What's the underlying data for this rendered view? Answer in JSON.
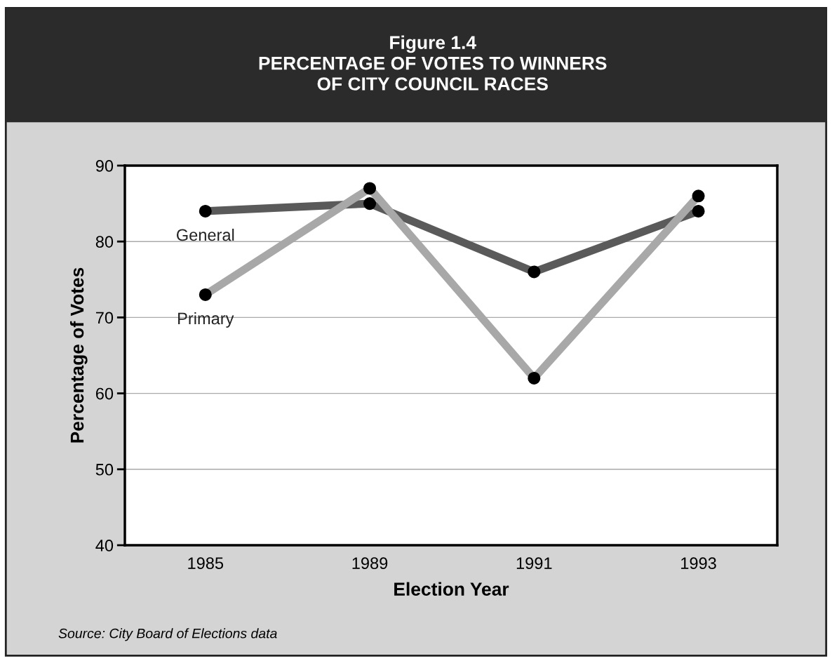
{
  "chart_data": {
    "type": "line",
    "title": "Figure 1.4\nPERCENTAGE OF VOTES TO WINNERS\nOF CITY COUNCIL RACES",
    "xlabel": "Election Year",
    "ylabel": "Percentage of Votes",
    "categories": [
      "1985",
      "1989",
      "1991",
      "1993"
    ],
    "series": [
      {
        "name": "General",
        "color": "#5a5a5a",
        "values": [
          84,
          85,
          76,
          84
        ]
      },
      {
        "name": "Primary",
        "color": "#a8a8a8",
        "values": [
          73,
          87,
          62,
          86
        ]
      }
    ],
    "ylim": [
      40,
      90
    ],
    "yticks": [
      40,
      50,
      60,
      70,
      80,
      90
    ],
    "grid": "y",
    "legend": false,
    "marker": "circle",
    "line_style": "solid",
    "annotations": [
      "Source: City Board of Elections data"
    ]
  }
}
